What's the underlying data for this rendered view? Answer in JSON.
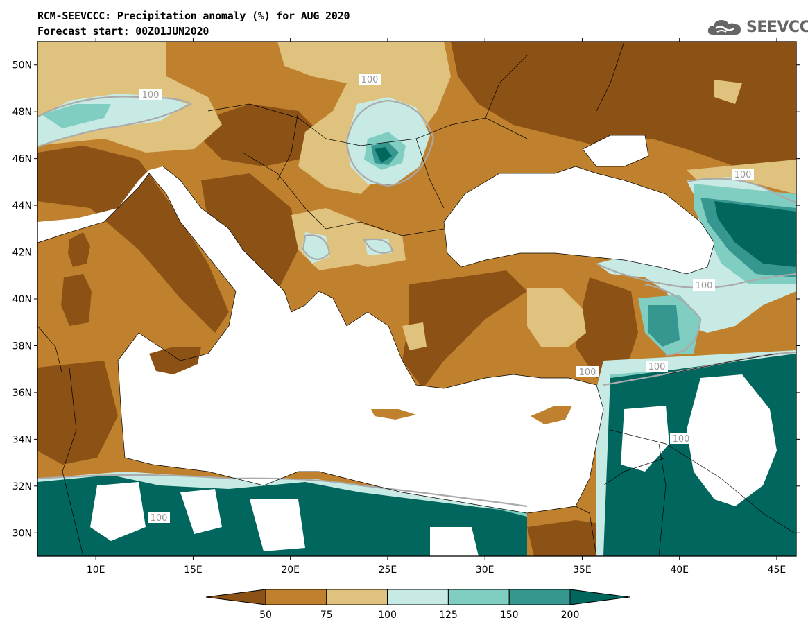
{
  "title": {
    "line1": "RCM-SEEVCCC: Precipitation anomaly (%) for AUG 2020",
    "line2": "Forecast start: 00Z01JUN2020"
  },
  "logo": {
    "text": "SEEVCCC",
    "icon": "cloud-icon"
  },
  "map": {
    "lon_range": [
      7,
      46
    ],
    "lat_range": [
      29,
      51
    ],
    "lon_ticks": [
      "10E",
      "15E",
      "20E",
      "25E",
      "30E",
      "35E",
      "40E",
      "45E"
    ],
    "lat_ticks": [
      "50N",
      "48N",
      "46N",
      "44N",
      "42N",
      "40N",
      "38N",
      "36N",
      "34N",
      "32N",
      "30N"
    ],
    "contour_label": "100"
  },
  "colorbar": {
    "ticks": [
      "50",
      "75",
      "100",
      "125",
      "150",
      "200"
    ],
    "colors": [
      "#8c5114",
      "#bf812d",
      "#dfc27d",
      "#c7eae5",
      "#80cdc1",
      "#35978f",
      "#01665e"
    ]
  }
}
